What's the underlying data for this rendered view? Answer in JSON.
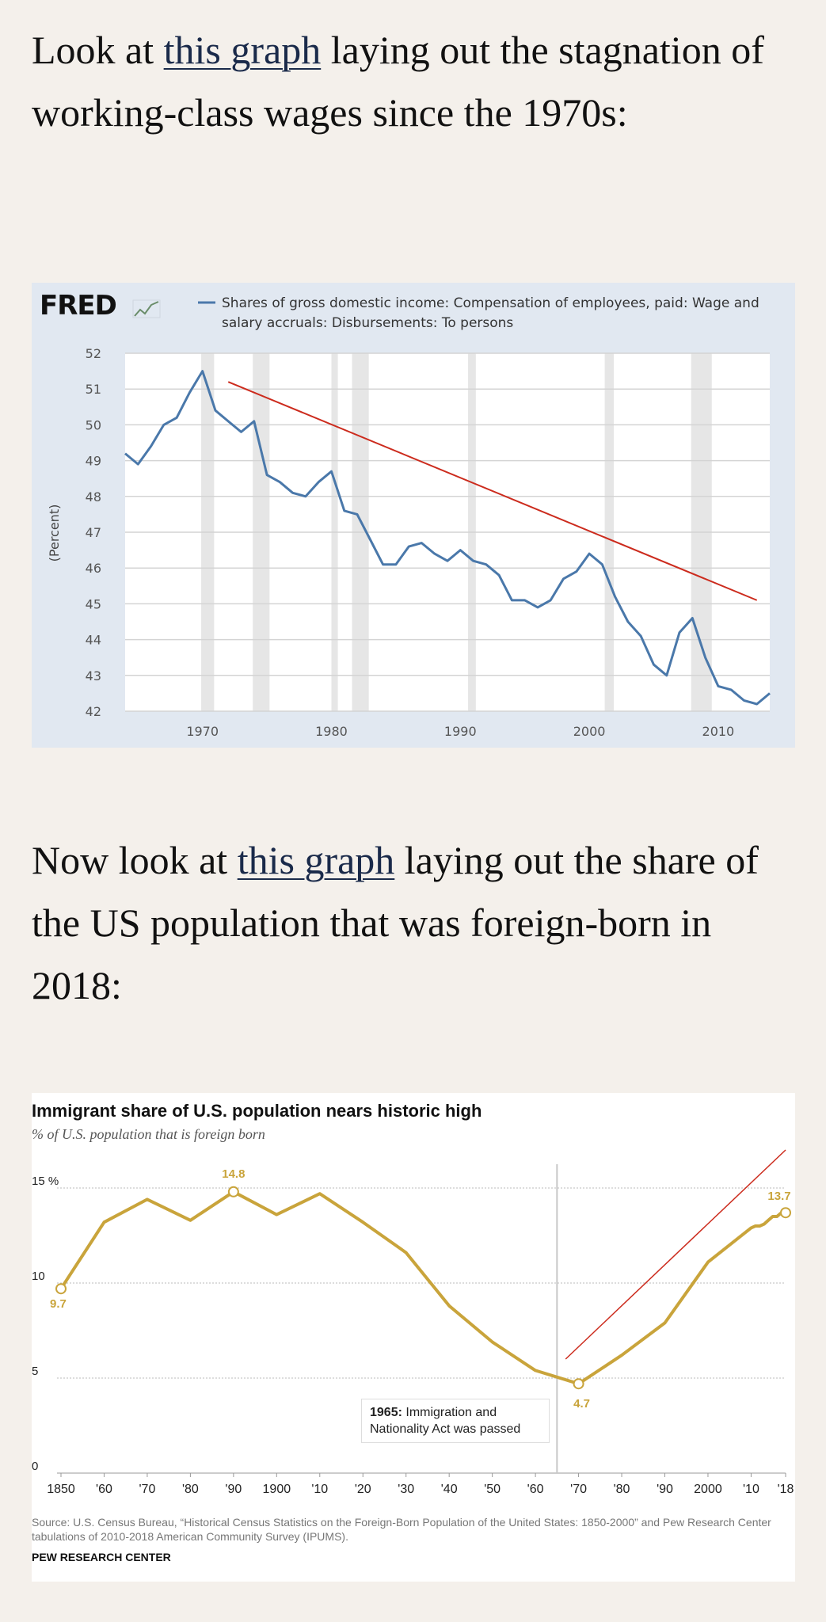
{
  "para1": {
    "before": "Look at ",
    "link": "this graph",
    "after": " laying out the stagnation of working-class wages since the 1970s:"
  },
  "para2": {
    "before": "Now look at ",
    "link": "this graph",
    "after": " laying out the share of the US population that was foreign-born in 2018:"
  },
  "chart_data": [
    {
      "type": "line",
      "logo": "FRED",
      "legend": "Shares of gross domestic income: Compensation of employees, paid: Wage and salary accruals: Disbursements: To persons",
      "legend_lines": [
        "Shares of gross domestic income: Compensation of employees, paid: Wage and",
        "salary accruals: Disbursements: To persons"
      ],
      "ylabel": "(Percent)",
      "xlim": [
        1964,
        2014
      ],
      "ylim": [
        42,
        52
      ],
      "x_ticks": [
        1970,
        1980,
        1990,
        2000,
        2010
      ],
      "y_ticks": [
        42,
        43,
        44,
        45,
        46,
        47,
        48,
        49,
        50,
        51,
        52
      ],
      "recessions": [
        [
          1969.9,
          1970.9
        ],
        [
          1973.9,
          1975.2
        ],
        [
          1980.0,
          1980.5
        ],
        [
          1981.6,
          1982.9
        ],
        [
          1990.6,
          1991.2
        ],
        [
          2001.2,
          2001.9
        ],
        [
          2007.9,
          2009.5
        ]
      ],
      "series": [
        {
          "color": "#4a78aa",
          "x": [
            1964,
            1965,
            1966,
            1967,
            1968,
            1969,
            1970,
            1971,
            1972,
            1973,
            1974,
            1975,
            1976,
            1977,
            1978,
            1979,
            1980,
            1981,
            1982,
            1983,
            1984,
            1985,
            1986,
            1987,
            1988,
            1989,
            1990,
            1991,
            1992,
            1993,
            1994,
            1995,
            1996,
            1997,
            1998,
            1999,
            2000,
            2001,
            2002,
            2003,
            2004,
            2005,
            2006,
            2007,
            2008,
            2009,
            2010,
            2011,
            2012,
            2013,
            2014
          ],
          "y": [
            49.2,
            48.9,
            49.4,
            50.0,
            50.2,
            50.9,
            51.5,
            50.4,
            50.1,
            49.8,
            50.1,
            48.6,
            48.4,
            48.1,
            48.0,
            48.4,
            48.7,
            47.6,
            47.5,
            46.8,
            46.1,
            46.1,
            46.6,
            46.7,
            46.4,
            46.2,
            46.5,
            46.2,
            46.1,
            45.8,
            45.1,
            45.1,
            44.9,
            45.1,
            45.7,
            45.9,
            46.4,
            46.1,
            45.2,
            44.5,
            44.1,
            43.3,
            43.0,
            44.2,
            44.6,
            43.5,
            42.7,
            42.6,
            42.3,
            42.2,
            42.5
          ]
        }
      ],
      "annotations": [
        {
          "type": "trend-line",
          "color": "#cc2b1d",
          "x": [
            1972,
            2013
          ],
          "y": [
            51.2,
            45.1
          ]
        }
      ]
    },
    {
      "type": "line",
      "title": "Immigrant share of U.S. population nears historic high",
      "subtitle": "% of U.S. population that is foreign born",
      "ylim": [
        0,
        15
      ],
      "xlim": [
        1850,
        2018
      ],
      "y_ticks": [
        0,
        5,
        10,
        15
      ],
      "y_tick_labels": [
        "0",
        "5",
        "10",
        "15 %"
      ],
      "x_ticks": [
        1850,
        1860,
        1870,
        1880,
        1890,
        1900,
        1910,
        1920,
        1930,
        1940,
        1950,
        1960,
        1970,
        1980,
        1990,
        2000,
        2010,
        2018
      ],
      "x_tick_labels": [
        "1850",
        "'60",
        "'70",
        "'80",
        "'90",
        "1900",
        "'10",
        "'20",
        "'30",
        "'40",
        "'50",
        "'60",
        "'70",
        "'80",
        "'90",
        "2000",
        "'10",
        "'18"
      ],
      "series": [
        {
          "color": "#c9a43b",
          "x": [
            1850,
            1860,
            1870,
            1880,
            1890,
            1900,
            1910,
            1920,
            1930,
            1940,
            1950,
            1960,
            1970,
            1980,
            1990,
            2000,
            2010,
            2011,
            2012,
            2013,
            2014,
            2015,
            2016,
            2017,
            2018
          ],
          "y": [
            9.7,
            13.2,
            14.4,
            13.3,
            14.8,
            13.6,
            14.7,
            13.2,
            11.6,
            8.8,
            6.9,
            5.4,
            4.7,
            6.2,
            7.9,
            11.1,
            12.9,
            13.0,
            13.0,
            13.1,
            13.3,
            13.5,
            13.5,
            13.7,
            13.7
          ]
        }
      ],
      "data_labels": [
        {
          "x": 1850,
          "y": 9.7,
          "text": "9.7"
        },
        {
          "x": 1890,
          "y": 14.8,
          "text": "14.8"
        },
        {
          "x": 1970,
          "y": 4.7,
          "text": "4.7"
        },
        {
          "x": 2018,
          "y": 13.7,
          "text": "13.7"
        }
      ],
      "marker_year": 1965,
      "note_bold": "1965:",
      "note_line1": " Immigration and",
      "note_line2": "Nationality Act was passed",
      "annotations": [
        {
          "type": "trend-line",
          "color": "#cc2b1d",
          "x": [
            1967,
            2018
          ],
          "y": [
            6.0,
            17.0
          ]
        }
      ],
      "source": "Source: U.S. Census Bureau, “Historical Census Statistics on the Foreign-Born Population of the United States: 1850-2000” and Pew Research Center tabulations of 2010-2018 American Community Survey (IPUMS).",
      "brand": "PEW RESEARCH CENTER"
    }
  ]
}
